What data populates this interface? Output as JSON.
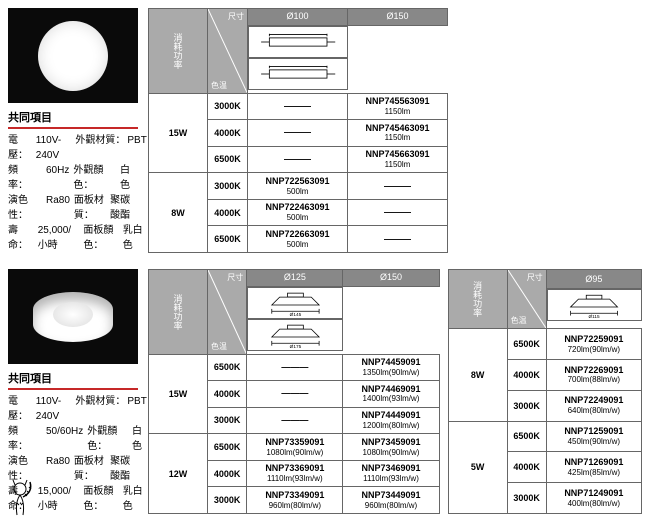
{
  "common_title": "共同項目",
  "spec_labels": {
    "voltage": "電　壓：",
    "freq": "頻　率：",
    "cri": "演色性：",
    "life": "壽　命：",
    "mat": "外觀材質：",
    "color": "外觀顏色：",
    "panel_mat": "面板材質：",
    "panel_color": "面板顏色："
  },
  "section1": {
    "specs": {
      "voltage": "110V-240V",
      "freq": "60Hz",
      "cri": "Ra80",
      "life": "25,000/小時",
      "mat": "PBT",
      "color": "白色",
      "panel_mat": "聚碳酸酯",
      "panel_color": "乳白色"
    },
    "table": {
      "axis": {
        "top": "尺寸",
        "bottom": "色温"
      },
      "side_label": "消耗功率",
      "diameters": [
        "Ø100",
        "Ø150"
      ],
      "blocks": [
        {
          "power": "15W",
          "rows": [
            {
              "temp": "3000K",
              "cells": [
                "—",
                {
                  "model": "NNP745563091",
                  "lm": "1150lm"
                }
              ]
            },
            {
              "temp": "4000K",
              "cells": [
                "—",
                {
                  "model": "NNP745463091",
                  "lm": "1150lm"
                }
              ]
            },
            {
              "temp": "6500K",
              "cells": [
                "—",
                {
                  "model": "NNP745663091",
                  "lm": "1150lm"
                }
              ]
            }
          ]
        },
        {
          "power": "8W",
          "rows": [
            {
              "temp": "3000K",
              "cells": [
                {
                  "model": "NNP722563091",
                  "lm": "500lm"
                },
                "—"
              ]
            },
            {
              "temp": "4000K",
              "cells": [
                {
                  "model": "NNP722463091",
                  "lm": "500lm"
                },
                "—"
              ]
            },
            {
              "temp": "6500K",
              "cells": [
                {
                  "model": "NNP722663091",
                  "lm": "500lm"
                },
                "—"
              ]
            }
          ]
        }
      ]
    }
  },
  "section2": {
    "specs": {
      "voltage": "110V-240V",
      "freq": "50/60Hz",
      "cri": "Ra80",
      "life": "15,000/小時",
      "mat": "PBT",
      "color": "白色",
      "panel_mat": "聚碳酸酯",
      "panel_color": "乳白色"
    },
    "tableA": {
      "axis": {
        "top": "尺寸",
        "bottom": "色温"
      },
      "side_label": "消耗功率",
      "diameters": [
        "Ø125",
        "Ø150"
      ],
      "dim_labels": [
        "Ø145",
        "Ø175"
      ],
      "blocks": [
        {
          "power": "15W",
          "rows": [
            {
              "temp": "6500K",
              "cells": [
                "—",
                {
                  "model": "NNP74459091",
                  "lm": "1350lm(90lm/w)"
                }
              ]
            },
            {
              "temp": "4000K",
              "cells": [
                "—",
                {
                  "model": "NNP74469091",
                  "lm": "1400lm(93lm/w)"
                }
              ]
            },
            {
              "temp": "3000K",
              "cells": [
                "—",
                {
                  "model": "NNP74449091",
                  "lm": "1200lm(80lm/w)"
                }
              ]
            }
          ]
        },
        {
          "power": "12W",
          "rows": [
            {
              "temp": "6500K",
              "cells": [
                {
                  "model": "NNP73359091",
                  "lm": "1080lm(90lm/w)"
                },
                {
                  "model": "NNP73459091",
                  "lm": "1080lm(90lm/w)"
                }
              ]
            },
            {
              "temp": "4000K",
              "cells": [
                {
                  "model": "NNP73369091",
                  "lm": "1110lm(93lm/w)"
                },
                {
                  "model": "NNP73469091",
                  "lm": "1110lm(93lm/w)"
                }
              ]
            },
            {
              "temp": "3000K",
              "cells": [
                {
                  "model": "NNP73349091",
                  "lm": "960lm(80lm/w)"
                },
                {
                  "model": "NNP73449091",
                  "lm": "960lm(80lm/w)"
                }
              ]
            }
          ]
        }
      ]
    },
    "tableB": {
      "axis": {
        "top": "尺寸",
        "bottom": "色温"
      },
      "side_label": "消耗功率",
      "diameters": [
        "Ø95"
      ],
      "dim_labels": [
        "Ø115"
      ],
      "blocks": [
        {
          "power": "8W",
          "rows": [
            {
              "temp": "6500K",
              "cells": [
                {
                  "model": "NNP72259091",
                  "lm": "720lm(90lm/w)"
                }
              ]
            },
            {
              "temp": "4000K",
              "cells": [
                {
                  "model": "NNP72269091",
                  "lm": "700lm(88lm/w)"
                }
              ]
            },
            {
              "temp": "3000K",
              "cells": [
                {
                  "model": "NNP72249091",
                  "lm": "640lm(80lm/w)"
                }
              ]
            }
          ]
        },
        {
          "power": "5W",
          "rows": [
            {
              "temp": "6500K",
              "cells": [
                {
                  "model": "NNP71259091",
                  "lm": "450lm(90lm/w)"
                }
              ]
            },
            {
              "temp": "4000K",
              "cells": [
                {
                  "model": "NNP71269091",
                  "lm": "425lm(85lm/w)"
                }
              ]
            },
            {
              "temp": "3000K",
              "cells": [
                {
                  "model": "NNP71249091",
                  "lm": "400lm(80lm/w)"
                }
              ]
            }
          ]
        }
      ]
    }
  }
}
